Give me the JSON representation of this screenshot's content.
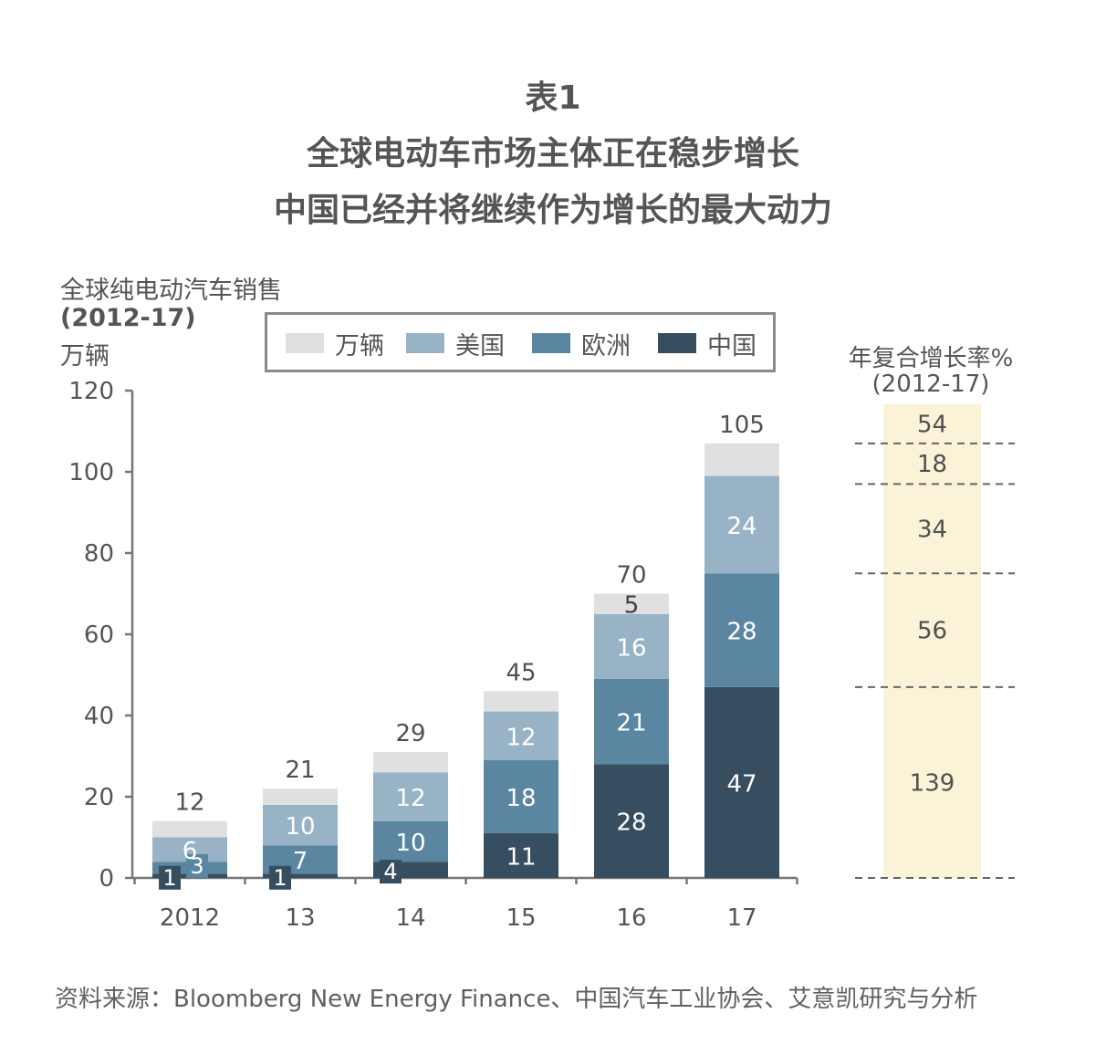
{
  "title": {
    "line1": "表1",
    "line2": "全球电动车市场主体正在稳步增长",
    "line3": "中国已经并将继续作为增长的最大动力"
  },
  "y_axis_label": {
    "line1": "全球纯电动汽车销售",
    "line2": "(2012-17)",
    "line3": "万辆"
  },
  "cagr": {
    "title_line1": "年复合增长率%",
    "title_line2": "(2012-17)",
    "values": [
      "54",
      "18",
      "34",
      "56",
      "139"
    ],
    "fill_color": "#fbf3d8"
  },
  "legend": [
    {
      "label": "万辆",
      "color": "#e0e0e0"
    },
    {
      "label": "美国",
      "color": "#97b3c5"
    },
    {
      "label": "欧洲",
      "color": "#5b86a1"
    },
    {
      "label": "中国",
      "color": "#374e60"
    }
  ],
  "source": "资料来源：Bloomberg New Energy Finance、中国汽车工业协会、艾意凯研究与分析",
  "chart_data": {
    "type": "bar",
    "stacked": true,
    "categories": [
      "2012",
      "13",
      "14",
      "15",
      "16",
      "17"
    ],
    "series": [
      {
        "name": "中国",
        "color": "#374e60",
        "values": [
          1,
          1,
          4,
          11,
          28,
          47
        ],
        "labels": [
          "1",
          "1",
          "4",
          "11",
          "28",
          "47"
        ]
      },
      {
        "name": "欧洲",
        "color": "#5b86a1",
        "values": [
          3,
          7,
          10,
          18,
          21,
          28
        ],
        "labels": [
          "3",
          "7",
          "10",
          "18",
          "21",
          "28"
        ]
      },
      {
        "name": "美国",
        "color": "#97b3c5",
        "values": [
          6,
          10,
          12,
          12,
          16,
          24
        ],
        "labels": [
          "6",
          "10",
          "12",
          "12",
          "16",
          "24"
        ]
      },
      {
        "name": "万辆",
        "color": "#e0e0e0",
        "values": [
          4,
          4,
          5,
          5,
          5,
          8
        ],
        "labels": [
          "",
          "",
          "",
          "",
          "5",
          ""
        ]
      }
    ],
    "totals": [
      "12",
      "21",
      "29",
      "45",
      "70",
      "105"
    ],
    "yticks": [
      "0",
      "20",
      "40",
      "60",
      "80",
      "100",
      "120"
    ],
    "ylim": [
      0,
      120
    ],
    "grid": false,
    "legend_position": "top"
  }
}
